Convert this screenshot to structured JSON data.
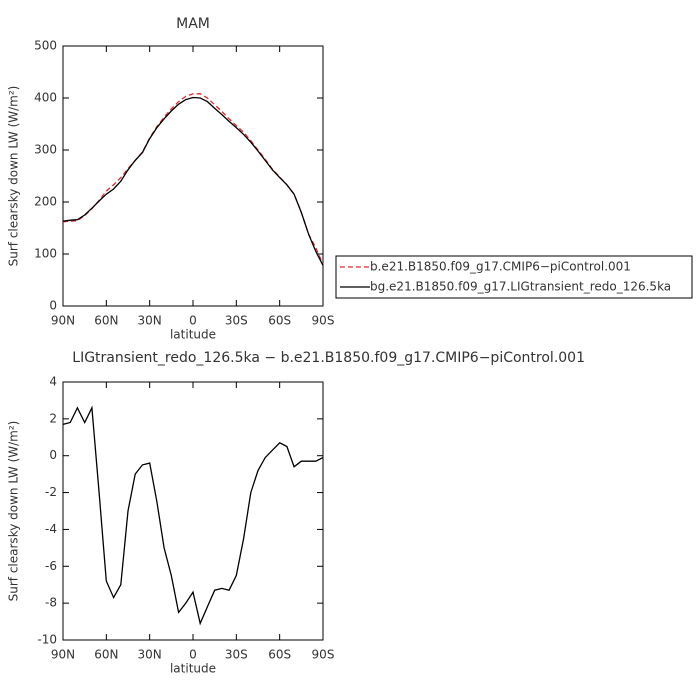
{
  "chart_data": [
    {
      "type": "line",
      "title": "MAM",
      "xlabel": "latitude",
      "ylabel": "Surf clearsky down LW (W/m²)",
      "x": [
        90,
        85,
        80,
        75,
        70,
        65,
        60,
        55,
        50,
        45,
        40,
        35,
        30,
        25,
        20,
        15,
        10,
        5,
        0,
        -5,
        -10,
        -15,
        -20,
        -25,
        -30,
        -35,
        -40,
        -45,
        -50,
        -55,
        -60,
        -65,
        -70,
        -75,
        -80,
        -85,
        -90
      ],
      "xlim": [
        90,
        -90
      ],
      "xticks": [
        {
          "value": 90,
          "label": "90N"
        },
        {
          "value": 60,
          "label": "60N"
        },
        {
          "value": 30,
          "label": "30N"
        },
        0,
        {
          "value": -30,
          "label": "30S"
        },
        {
          "value": -60,
          "label": "60S"
        },
        {
          "value": -90,
          "label": "90S"
        }
      ],
      "ylim": [
        0,
        500
      ],
      "yticks": [
        0,
        100,
        200,
        300,
        400,
        500
      ],
      "legend": "right",
      "series": [
        {
          "name": "b.e21.B1850.f09_g17.CMIP6−piControl.001",
          "color": "#e8262a",
          "line_style": "dashed",
          "values": [
            162,
            163,
            164,
            174,
            187,
            203,
            221,
            233,
            247,
            264,
            280,
            296,
            323,
            345,
            363,
            379,
            393,
            403,
            408,
            408,
            400,
            387,
            374,
            360,
            347,
            334,
            318,
            300,
            282,
            263,
            248,
            233,
            215,
            180,
            138,
            112,
            80
          ]
        },
        {
          "name": "bg.e21.B1850.f09_g17.LIGtransient_redo_126.5ka",
          "color": "#000000",
          "line_style": "solid",
          "values": [
            163,
            165,
            166,
            175,
            188,
            202,
            215,
            225,
            240,
            262,
            280,
            295,
            322,
            343,
            360,
            375,
            388,
            397,
            401,
            400,
            393,
            380,
            368,
            355,
            343,
            330,
            315,
            298,
            280,
            262,
            247,
            233,
            215,
            180,
            138,
            105,
            78
          ]
        }
      ]
    },
    {
      "type": "line",
      "title": "LIGtransient_redo_126.5ka − b.e21.B1850.f09_g17.CMIP6−piControl.001",
      "xlabel": "latitude",
      "ylabel": "Surf clearsky down LW (W/m²)",
      "x": [
        90,
        85,
        80,
        75,
        70,
        65,
        60,
        55,
        50,
        45,
        40,
        35,
        30,
        25,
        20,
        15,
        10,
        5,
        0,
        -5,
        -10,
        -15,
        -20,
        -25,
        -30,
        -35,
        -40,
        -45,
        -50,
        -55,
        -60,
        -65,
        -70,
        -75,
        -80,
        -85,
        -90
      ],
      "xlim": [
        90,
        -90
      ],
      "xticks": [
        {
          "value": 90,
          "label": "90N"
        },
        {
          "value": 60,
          "label": "60N"
        },
        {
          "value": 30,
          "label": "30N"
        },
        0,
        {
          "value": -30,
          "label": "30S"
        },
        {
          "value": -60,
          "label": "60S"
        },
        {
          "value": -90,
          "label": "90S"
        }
      ],
      "ylim": [
        -10,
        4
      ],
      "yticks": [
        -10,
        -8,
        -6,
        -4,
        -2,
        0,
        2,
        4
      ],
      "series": [
        {
          "color": "#000000",
          "line_style": "solid",
          "values": [
            1.7,
            1.8,
            2.6,
            1.8,
            2.6,
            -2,
            -6.8,
            -7.7,
            -7,
            -3,
            -1,
            -0.5,
            -0.4,
            -2.5,
            -5,
            -6.5,
            -8.5,
            -8,
            -7.4,
            -9.1,
            -8.2,
            -7.3,
            -7.2,
            -7.3,
            -6.5,
            -4.5,
            -2,
            -0.8,
            -0.1,
            0.3,
            0.7,
            0.5,
            -0.6,
            -0.3,
            -0.3,
            -0.3,
            -0.1
          ]
        }
      ]
    }
  ]
}
